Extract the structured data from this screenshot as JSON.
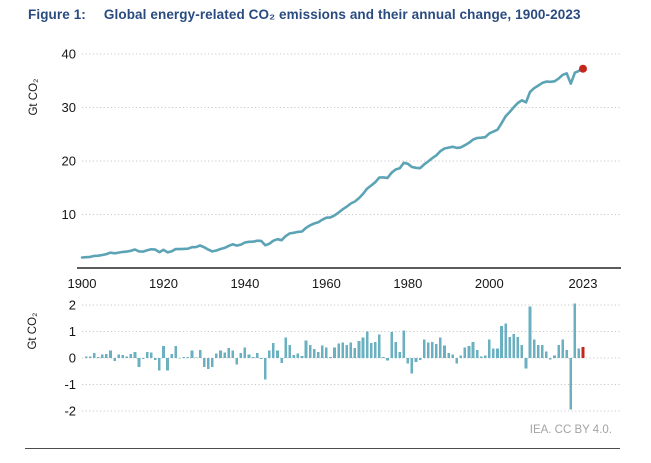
{
  "figure": {
    "label": "Figure 1:",
    "title": "Global energy-related CO₂ emissions and their annual change, 1900-2023",
    "attribution": "IEA. CC BY 4.0."
  },
  "colors": {
    "series_teal": "#6ab0c0",
    "line_teal": "#5ca4b5",
    "highlight_red": "#c4281c",
    "title_navy": "#2a4b80",
    "gridline_gray": "#c9c9c9",
    "axis_black": "#262626",
    "footer_gray": "#a3a3a3"
  },
  "chart_data": {
    "x_axis": {
      "start_year": 1900,
      "end_year": 2023,
      "tick_labels": [
        "1900",
        "1920",
        "1940",
        "1960",
        "1980",
        "2000",
        "2023"
      ]
    },
    "emissions_line": {
      "type": "line",
      "series_name": "Global energy-related CO₂ emissions (Gt CO₂)",
      "ylabel": "Gt CO₂",
      "ylim": [
        0,
        40
      ],
      "ytick_labels": [
        40,
        30,
        20,
        10
      ],
      "grid": "dotted horizontal",
      "values_by_year": [
        1.96,
        2.02,
        2.07,
        2.26,
        2.29,
        2.43,
        2.59,
        2.87,
        2.75,
        2.88,
        3.0,
        3.06,
        3.22,
        3.45,
        3.11,
        3.07,
        3.3,
        3.5,
        3.43,
        2.95,
        3.41,
        2.94,
        3.1,
        3.55,
        3.53,
        3.57,
        3.6,
        3.89,
        3.9,
        4.2,
        3.86,
        3.44,
        3.1,
        3.27,
        3.56,
        3.76,
        4.14,
        4.43,
        4.18,
        4.37,
        4.76,
        4.89,
        4.92,
        5.1,
        5.07,
        4.25,
        4.54,
        5.1,
        5.38,
        5.2,
        5.97,
        6.47,
        6.58,
        6.75,
        6.83,
        7.49,
        7.98,
        8.32,
        8.54,
        9.02,
        9.41,
        9.45,
        9.84,
        10.38,
        10.97,
        11.47,
        12.05,
        12.43,
        13.07,
        13.85,
        14.85,
        15.42,
        16.03,
        16.91,
        16.94,
        16.84,
        17.82,
        18.42,
        18.64,
        19.67,
        19.47,
        18.88,
        18.73,
        18.66,
        19.35,
        19.93,
        20.54,
        21.07,
        21.85,
        22.33,
        22.51,
        22.65,
        22.45,
        22.55,
        22.95,
        23.4,
        24.0,
        24.3,
        24.35,
        24.45,
        25.15,
        25.5,
        25.85,
        27.05,
        28.35,
        29.15,
        30.05,
        30.85,
        31.35,
        30.95,
        32.9,
        33.6,
        34.1,
        34.6,
        34.85,
        34.8,
        34.9,
        35.4,
        36.1,
        36.4,
        34.45,
        36.5,
        36.85,
        37.26
      ],
      "highlight": {
        "year": 2023,
        "value": 37.26,
        "style": "red dot at last point"
      }
    },
    "annual_change_bars": {
      "type": "bar",
      "series_name": "Annual change in emissions (Gt CO₂)",
      "ylabel": "Gt CO₂",
      "ylim": [
        -2,
        2
      ],
      "ytick_labels": [
        2,
        1,
        0,
        -1,
        -2
      ],
      "grid": "dotted horizontal",
      "values": "derived: year-over-year difference of emissions_line.values_by_year, 1901-2023",
      "highlight": {
        "year": 2023,
        "style": "red bar at last year"
      }
    }
  }
}
